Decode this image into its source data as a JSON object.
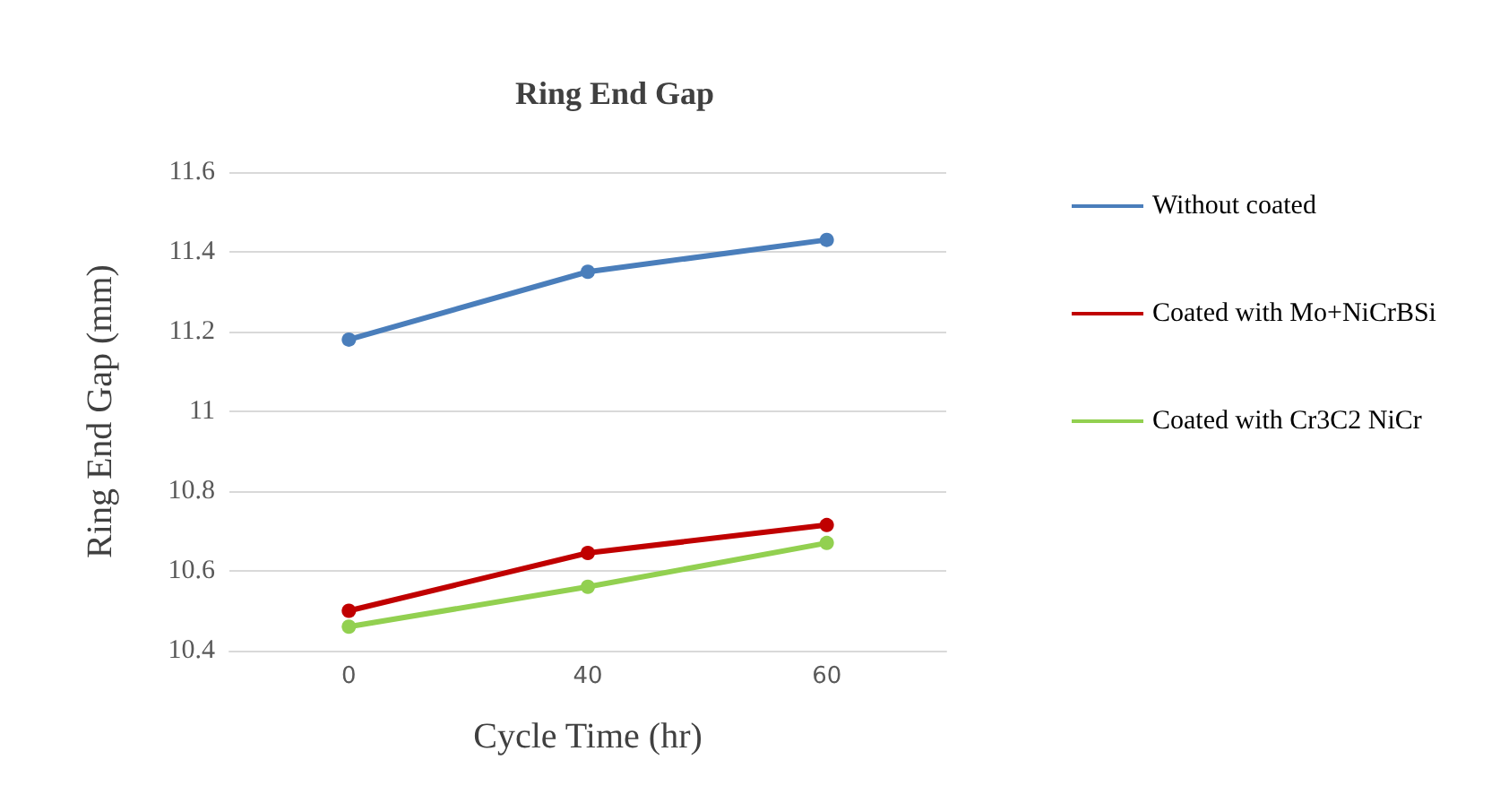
{
  "chart_data": {
    "type": "line",
    "title": "Ring End Gap",
    "xlabel": "Cycle Time (hr)",
    "ylabel": "Ring End Gap (mm)",
    "categories": [
      "0",
      "40",
      "60"
    ],
    "series": [
      {
        "name": "Without coated",
        "color": "#4a7ebb",
        "values": [
          11.18,
          11.35,
          11.43
        ]
      },
      {
        "name": "Coated with Mo+NiCrBSi",
        "color": "#c00000",
        "values": [
          10.5,
          10.645,
          10.715
        ]
      },
      {
        "name": "Coated with Cr3C2 NiCr",
        "color": "#92d050",
        "values": [
          10.46,
          10.56,
          10.67
        ]
      }
    ],
    "ylim": [
      10.4,
      11.6
    ],
    "yticks": [
      10.4,
      10.6,
      10.8,
      11,
      11.2,
      11.4,
      11.6
    ],
    "grid": "y",
    "legend": "right",
    "marker": "circle",
    "line_style": "solid"
  }
}
